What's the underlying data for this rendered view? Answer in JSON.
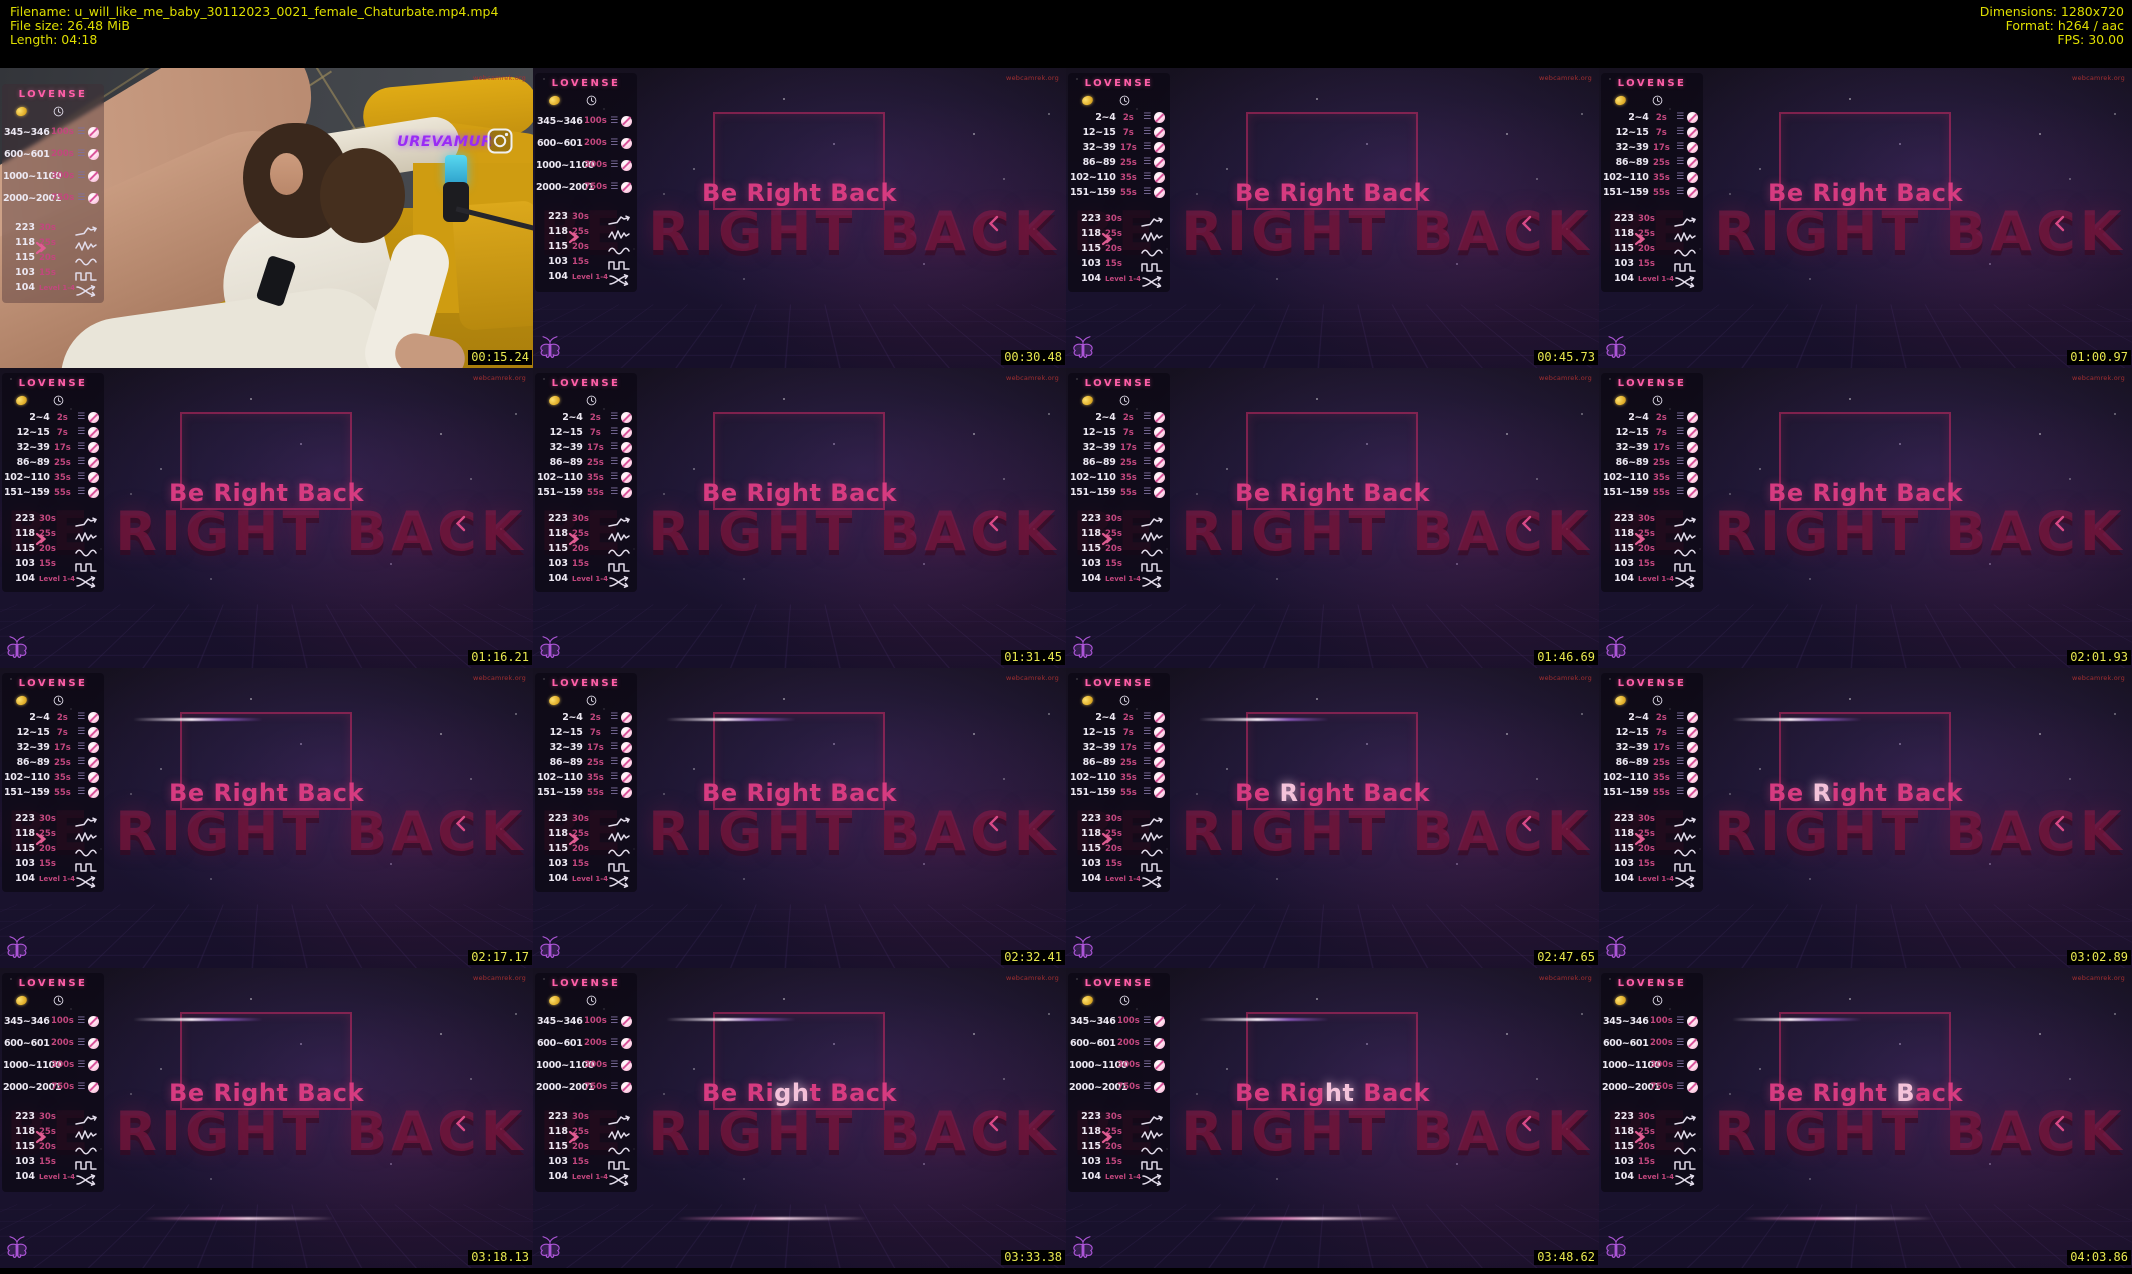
{
  "header": {
    "left": [
      "Filename: u_will_like_me_baby_30112023_0021_female_Chaturbate.mp4.mp4",
      "File size: 26.48 MiB",
      "Length: 04:18"
    ],
    "right": [
      "Dimensions: 1280x720",
      "Format: h264 / aac",
      "FPS: 30.00"
    ]
  },
  "colors": {
    "header_text": "#dfdf00",
    "timestamp_text": "#e9e94f",
    "brb_pink": "#d63b80",
    "panel_duration_pink": "#c2477e",
    "lovense_logo_pink": "#ff5fa8",
    "moth_purple": "#b55ae0",
    "watermark_purple": "#9a2bf5",
    "url_red": "#b03232"
  },
  "brb": {
    "title": "Be Right Back",
    "bg_text": "BE RIGHT BACK"
  },
  "watermark_url": "webcamrek.org",
  "photo": {
    "watermark": "UREVAMUR"
  },
  "lovense": {
    "logo": "LOVENSE",
    "menus": {
      "menu4": [
        {
          "range": "345~346",
          "dur": "100s"
        },
        {
          "range": "600~601",
          "dur": "200s"
        },
        {
          "range": "1000~1100",
          "dur": "300s"
        },
        {
          "range": "2000~2001",
          "dur": "750s"
        }
      ],
      "menu6": [
        {
          "range": "2~4",
          "dur": "2s"
        },
        {
          "range": "12~15",
          "dur": "7s"
        },
        {
          "range": "32~39",
          "dur": "17s"
        },
        {
          "range": "86~89",
          "dur": "25s"
        },
        {
          "range": "102~110",
          "dur": "35s"
        },
        {
          "range": "151~159",
          "dur": "55s"
        }
      ]
    },
    "patterns": [
      {
        "num": "223",
        "dur": "30s",
        "icon": "rise-wave-icon"
      },
      {
        "num": "118",
        "dur": "25s",
        "icon": "pulse-wave-icon"
      },
      {
        "num": "115",
        "dur": "20s",
        "icon": "sine-wave-icon"
      },
      {
        "num": "103",
        "dur": "15s",
        "icon": "square-wave-icon"
      },
      {
        "num": "104",
        "dur": "Level 1-4",
        "icon": "shuffle-icon"
      }
    ]
  },
  "thumbnails": [
    {
      "type": "photo",
      "timestamp": "00:15.24",
      "menu": "menu4"
    },
    {
      "type": "brb",
      "timestamp": "00:30.48",
      "menu": "menu4"
    },
    {
      "type": "brb",
      "timestamp": "00:45.73",
      "menu": "menu6"
    },
    {
      "type": "brb",
      "timestamp": "01:00.97",
      "menu": "menu6"
    },
    {
      "type": "brb",
      "timestamp": "01:16.21",
      "menu": "menu6"
    },
    {
      "type": "brb",
      "timestamp": "01:31.45",
      "menu": "menu6"
    },
    {
      "type": "brb",
      "timestamp": "01:46.69",
      "menu": "menu6"
    },
    {
      "type": "brb",
      "timestamp": "02:01.93",
      "menu": "menu6"
    },
    {
      "type": "brb",
      "timestamp": "02:17.17",
      "menu": "menu6",
      "flare": [
        "top"
      ]
    },
    {
      "type": "brb",
      "timestamp": "02:32.41",
      "menu": "menu6",
      "flare": [
        "top"
      ]
    },
    {
      "type": "brb",
      "timestamp": "02:47.65",
      "menu": "menu6",
      "flare": [
        "top"
      ],
      "highlight": {
        "pre": "Be ",
        "hi": "R",
        "post": "ight Back"
      }
    },
    {
      "type": "brb",
      "timestamp": "03:02.89",
      "menu": "menu6",
      "flare": [
        "top"
      ],
      "highlight": {
        "pre": "Be ",
        "hi": "R",
        "post": "ight Back"
      }
    },
    {
      "type": "brb",
      "timestamp": "03:18.13",
      "menu": "menu4",
      "flare": [
        "top",
        "bottom"
      ]
    },
    {
      "type": "brb",
      "timestamp": "03:33.38",
      "menu": "menu4",
      "flare": [
        "top",
        "bottom"
      ],
      "highlight": {
        "pre": "Be Ri",
        "hi": "gh",
        "post": "t Back"
      }
    },
    {
      "type": "brb",
      "timestamp": "03:48.62",
      "menu": "menu4",
      "flare": [
        "top",
        "bottom"
      ],
      "highlight": {
        "pre": "Be Rig",
        "hi": "ht",
        "post": " Back"
      }
    },
    {
      "type": "brb",
      "timestamp": "04:03.86",
      "menu": "menu4",
      "flare": [
        "top",
        "bottom"
      ],
      "highlight": {
        "pre": "Be Right ",
        "hi": "B",
        "post": "ack"
      }
    }
  ]
}
